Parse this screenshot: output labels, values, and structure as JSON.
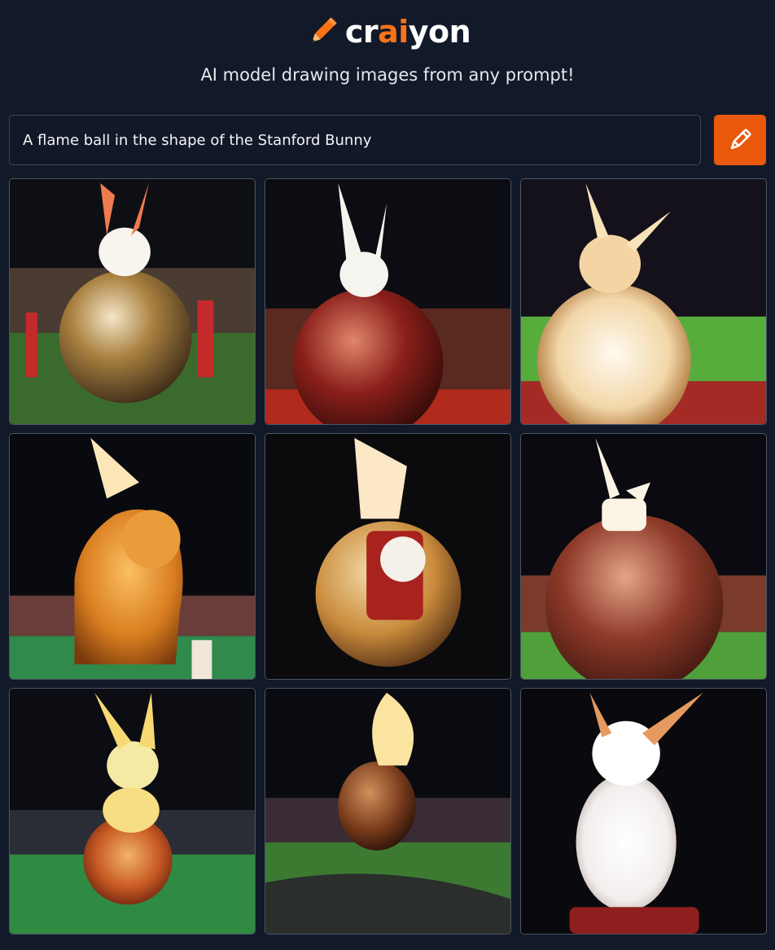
{
  "brand": {
    "prefix": "cr",
    "accent": "ai",
    "suffix": "yon",
    "accent_color": "#f97316"
  },
  "tagline": "AI model drawing images from any prompt!",
  "prompt": {
    "value": "A flame ball in the shape of the Stanford Bunny"
  },
  "draw_button": {
    "icon": "pencil-icon",
    "color": "#ea580c"
  },
  "images": [
    {
      "name": "generated-image-1"
    },
    {
      "name": "generated-image-2"
    },
    {
      "name": "generated-image-3"
    },
    {
      "name": "generated-image-4"
    },
    {
      "name": "generated-image-5"
    },
    {
      "name": "generated-image-6"
    },
    {
      "name": "generated-image-7"
    },
    {
      "name": "generated-image-8"
    },
    {
      "name": "generated-image-9"
    }
  ]
}
